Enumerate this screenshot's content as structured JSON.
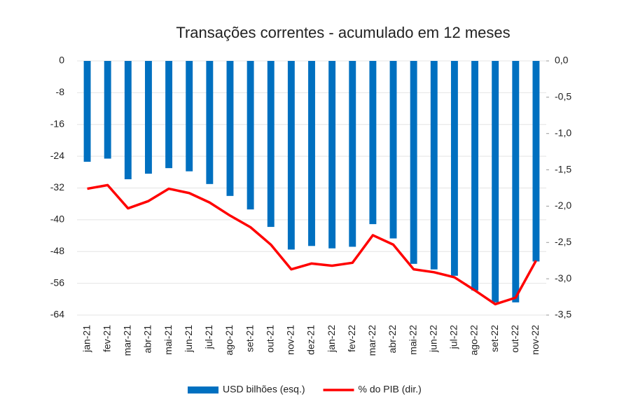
{
  "chart_data": {
    "type": "bar-line",
    "title": "Transações correntes - acumulado em 12 meses",
    "categories": [
      "jan-21",
      "fev-21",
      "mar-21",
      "abr-21",
      "mai-21",
      "jun-21",
      "jul-21",
      "ago-21",
      "set-21",
      "out-21",
      "nov-21",
      "dez-21",
      "jan-22",
      "fev-22",
      "mar-22",
      "abr-22",
      "mai-22",
      "jun-22",
      "jul-22",
      "ago-22",
      "set-22",
      "out-22",
      "nov-22"
    ],
    "series": [
      {
        "name": "USD bilhões (esq.)",
        "type": "bar",
        "color": "#0070c0",
        "axis": "y",
        "values": [
          -25.4,
          -24.6,
          -29.8,
          -28.4,
          -27,
          -27.8,
          -31,
          -34,
          -37.4,
          -41.8,
          -47.5,
          -46.6,
          -47.2,
          -46.8,
          -41.1,
          -44.7,
          -51.1,
          -52.5,
          -54.1,
          -57.8,
          -60.8,
          -60.8,
          -50.5
        ]
      },
      {
        "name": "% do PIB (dir.)",
        "type": "line",
        "color": "#ff0000",
        "axis": "y2",
        "values": [
          -1.76,
          -1.71,
          -2.03,
          -1.93,
          -1.76,
          -1.82,
          -1.95,
          -2.13,
          -2.29,
          -2.53,
          -2.87,
          -2.79,
          -2.82,
          -2.78,
          -2.4,
          -2.53,
          -2.87,
          -2.91,
          -2.98,
          -3.16,
          -3.35,
          -3.26,
          -2.75
        ]
      }
    ],
    "ylim": [
      0,
      -64
    ],
    "yticks": [
      0,
      -8,
      -16,
      -24,
      -32,
      -40,
      -48,
      -56,
      -64
    ],
    "y2lim": [
      0,
      -3.5
    ],
    "y2ticks": [
      {
        "value": 0,
        "label": "0,0"
      },
      {
        "value": -0.5,
        "label": "-0,5"
      },
      {
        "value": -1,
        "label": "-1,0"
      },
      {
        "value": -1.5,
        "label": "-1,5"
      },
      {
        "value": -2,
        "label": "-2,0"
      },
      {
        "value": -2.5,
        "label": "-2,5"
      },
      {
        "value": -3,
        "label": "-3,0"
      },
      {
        "value": -3.5,
        "label": "-3,5"
      }
    ],
    "grid": true
  }
}
